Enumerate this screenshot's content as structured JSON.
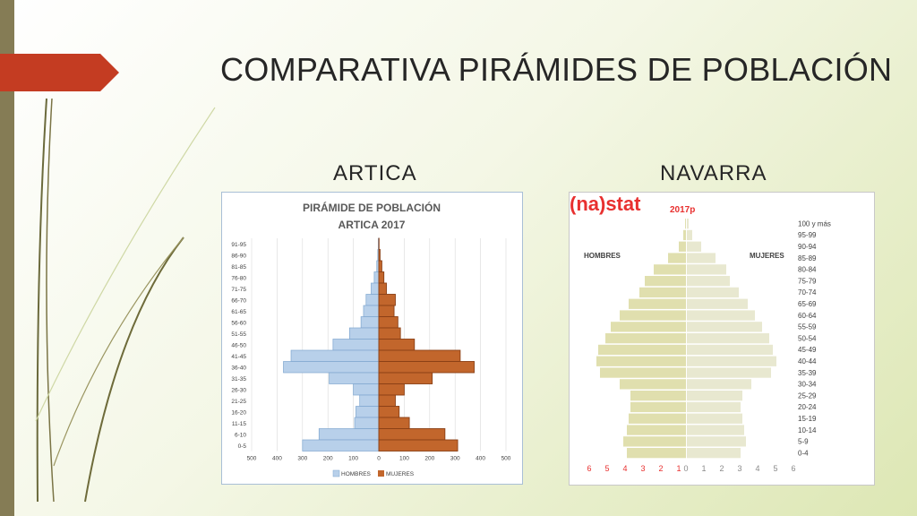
{
  "slide": {
    "title": "COMPARATIVA PIRÁMIDES DE POBLACIÓN",
    "subtitle_left": "ARTICA",
    "subtitle_right": "NAVARRA",
    "colors": {
      "accent_bar": "#857c55",
      "tab": "#c43c22",
      "hombres_a": "#b8d0ea",
      "mujeres_a": "#c2662c",
      "nav_bar": "#e0dfae",
      "nav_red": "#e8302f"
    }
  },
  "chart_data": [
    {
      "type": "bar",
      "orientation": "horizontal-pyramid",
      "title": "PIRÁMIDE DE POBLACIÓN",
      "subtitle": "ARTICA  2017",
      "categories": [
        "91-95",
        "86-90",
        "81-85",
        "76-80",
        "71-75",
        "66-70",
        "61-65",
        "56-60",
        "51-55",
        "46-50",
        "41-45",
        "36-40",
        "31-35",
        "26-30",
        "21-25",
        "16-20",
        "11-15",
        "6-10",
        "0-5"
      ],
      "series": [
        {
          "name": "HOMBRES",
          "values": [
            2,
            4,
            8,
            18,
            30,
            50,
            60,
            70,
            115,
            180,
            345,
            375,
            195,
            100,
            75,
            90,
            95,
            235,
            300
          ]
        },
        {
          "name": "MUJERES",
          "values": [
            1,
            5,
            12,
            20,
            30,
            65,
            60,
            75,
            85,
            140,
            320,
            375,
            210,
            100,
            65,
            80,
            120,
            260,
            310
          ]
        }
      ],
      "xticks": [
        "500",
        "400",
        "300",
        "200",
        "100",
        "0",
        "100",
        "200",
        "300",
        "400",
        "500"
      ],
      "xlim": [
        -500,
        500
      ],
      "grid": true,
      "legend": "bottom"
    },
    {
      "type": "bar",
      "orientation": "horizontal-pyramid",
      "title": "",
      "logo": "(na)stat",
      "year_label": "2017p",
      "left_label": "HOMBRES",
      "right_label": "MUJERES",
      "categories": [
        "100 y más",
        "95-99",
        "90-94",
        "85-89",
        "80-84",
        "75-79",
        "70-74",
        "65-69",
        "60-64",
        "55-59",
        "50-54",
        "45-49",
        "40-44",
        "35-39",
        "30-34",
        "25-29",
        "20-24",
        "15-19",
        "10-14",
        "5-9",
        "0-4"
      ],
      "series": [
        {
          "name": "HOMBRES",
          "values": [
            0.05,
            0.15,
            0.4,
            1.0,
            1.8,
            2.3,
            2.6,
            3.2,
            3.7,
            4.2,
            4.5,
            4.9,
            5.0,
            4.8,
            3.7,
            3.1,
            3.1,
            3.2,
            3.3,
            3.5,
            3.3
          ]
        },
        {
          "name": "MUJERES",
          "values": [
            0.1,
            0.3,
            0.8,
            1.6,
            2.2,
            2.4,
            2.9,
            3.4,
            3.8,
            4.2,
            4.6,
            4.8,
            5.0,
            4.7,
            3.6,
            3.1,
            3.0,
            3.1,
            3.2,
            3.3,
            3.0
          ]
        }
      ],
      "xticks_left": [
        "6",
        "5",
        "4",
        "3",
        "2",
        "1"
      ],
      "xticks_right": [
        "0",
        "1",
        "2",
        "3",
        "4",
        "5",
        "6"
      ],
      "xlim": [
        -6,
        6
      ]
    }
  ]
}
